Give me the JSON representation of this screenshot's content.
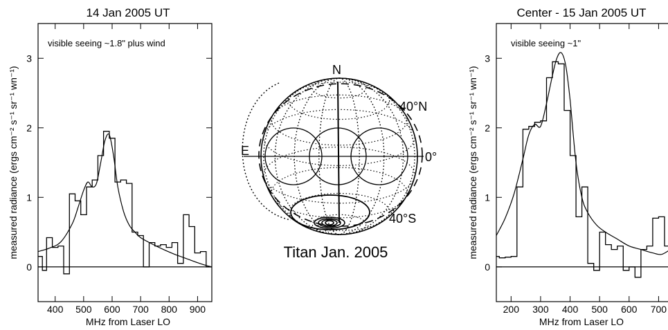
{
  "chart_data": [
    {
      "type": "line",
      "title": "14 Jan 2005 UT",
      "annotation": "visible seeing ~1.8\" plus wind",
      "xlabel": "MHz from Laser LO",
      "ylabel": "measured radiance (ergs cm⁻² s⁻¹ sr⁻¹ wn⁻¹)",
      "xlim": [
        340,
        950
      ],
      "ylim": [
        -0.5,
        3.5
      ],
      "xticks": [
        400,
        500,
        600,
        700,
        800,
        900
      ],
      "yticks": [
        0,
        1,
        2,
        3
      ],
      "zero_line": true,
      "series": [
        {
          "style": "histogram",
          "edges": [
            340,
            355,
            370,
            390,
            410,
            430,
            450,
            470,
            490,
            510,
            530,
            550,
            570,
            590,
            610,
            630,
            650,
            670,
            690,
            710,
            730,
            750,
            770,
            790,
            810,
            830,
            850,
            870,
            890,
            910,
            930,
            950
          ],
          "values": [
            0.15,
            -0.05,
            0.42,
            0.28,
            0.3,
            -0.1,
            1.05,
            0.95,
            0.75,
            1.15,
            1.25,
            1.6,
            1.95,
            1.85,
            1.22,
            1.25,
            1.2,
            0.5,
            0.45,
            0.0,
            0.35,
            0.3,
            0.32,
            0.28,
            0.35,
            0.05,
            0.75,
            0.58,
            0.2,
            0.22,
            0.0
          ]
        },
        {
          "style": "smooth",
          "x": [
            340,
            380,
            420,
            460,
            480,
            500,
            515,
            530,
            545,
            560,
            575,
            590,
            605,
            620,
            640,
            660,
            680,
            700,
            740,
            780,
            820,
            860,
            900,
            930,
            950
          ],
          "y": [
            0.22,
            0.27,
            0.36,
            0.62,
            0.85,
            1.1,
            1.22,
            1.15,
            1.2,
            1.5,
            1.82,
            1.9,
            1.6,
            1.15,
            0.8,
            0.6,
            0.5,
            0.42,
            0.33,
            0.25,
            0.18,
            0.12,
            0.06,
            0.02,
            0.0
          ]
        }
      ]
    },
    {
      "type": "line",
      "title": "Center - 15 Jan 2005 UT",
      "annotation": "visible seeing ~1\"",
      "xlabel": "MHz from Laser LO",
      "ylabel": "measured radiance (ergs cm⁻² s⁻¹ sr⁻¹ wn⁻¹)",
      "xlim": [
        150,
        760
      ],
      "ylim": [
        -0.5,
        3.5
      ],
      "xticks": [
        200,
        300,
        400,
        500,
        600,
        700
      ],
      "yticks": [
        0,
        1,
        2,
        3
      ],
      "zero_line": true,
      "series": [
        {
          "style": "histogram",
          "edges": [
            150,
            160,
            180,
            200,
            220,
            240,
            260,
            280,
            300,
            320,
            340,
            360,
            380,
            400,
            420,
            440,
            460,
            480,
            500,
            520,
            540,
            560,
            580,
            600,
            620,
            640,
            660,
            680,
            700,
            720,
            740,
            760
          ],
          "values": [
            0.15,
            0.13,
            0.14,
            0.15,
            1.15,
            1.98,
            2.02,
            2.08,
            2.1,
            2.72,
            2.95,
            2.92,
            2.25,
            1.6,
            0.72,
            1.15,
            0.05,
            -0.05,
            0.5,
            0.32,
            0.25,
            0.3,
            -0.05,
            0.0,
            -0.15,
            0.25,
            0.3,
            0.7,
            0.72,
            0.3,
            0.28
          ]
        },
        {
          "style": "smooth",
          "x": [
            150,
            180,
            210,
            240,
            260,
            280,
            300,
            320,
            340,
            355,
            370,
            385,
            400,
            420,
            440,
            460,
            490,
            520,
            560,
            600,
            640,
            680,
            710,
            740,
            760
          ],
          "y": [
            0.45,
            0.7,
            1.05,
            1.55,
            1.9,
            2.05,
            2.02,
            2.35,
            2.75,
            3.0,
            3.08,
            2.9,
            2.4,
            1.5,
            1.0,
            0.78,
            0.6,
            0.5,
            0.4,
            0.3,
            0.25,
            0.2,
            0.18,
            0.25,
            0.3
          ]
        }
      ]
    }
  ],
  "globe": {
    "north_label": "N",
    "east_label": "E",
    "lat_label_north": "40°N",
    "lat_label_equator": "0°",
    "lat_label_south": "40°S",
    "caption": "Titan Jan. 2005"
  }
}
